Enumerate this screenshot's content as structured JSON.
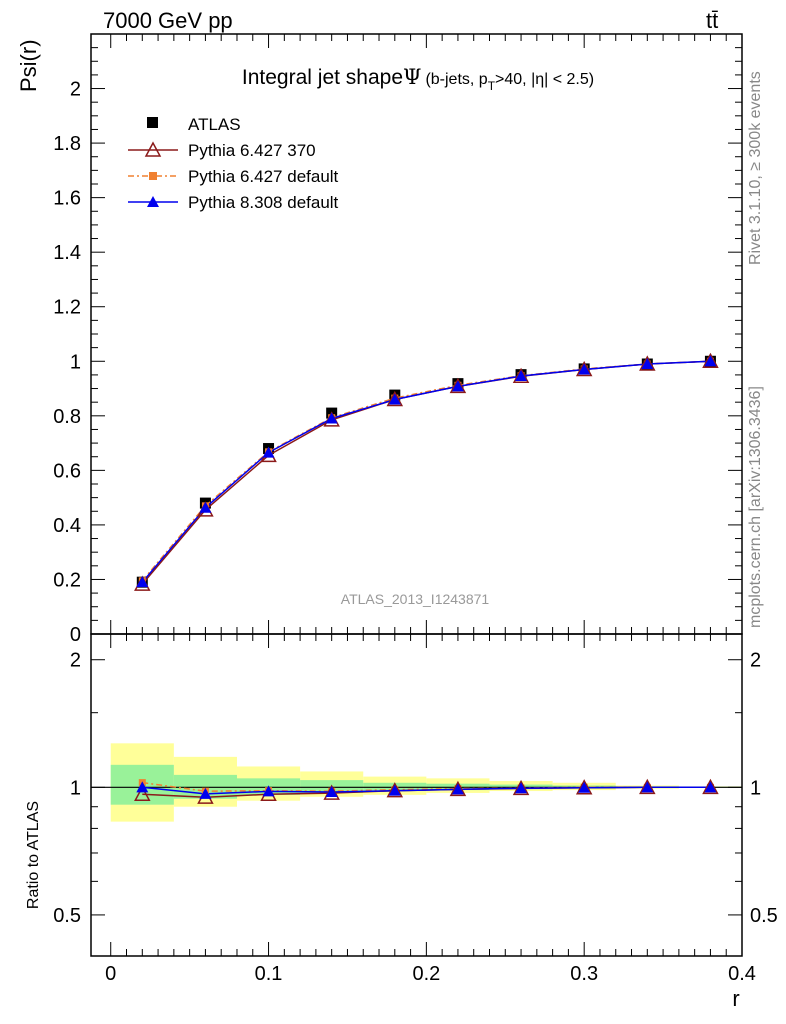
{
  "header": {
    "left": "7000 GeV pp",
    "right": "tt̄"
  },
  "side_labels": {
    "top": "Rivet 3.1.10, ≥ 300k events",
    "bottom": "mcplots.cern.ch [arXiv:1306.3436]"
  },
  "colors": {
    "atlas": "#000000",
    "py6_370": "#8b1a1a",
    "py6_default": "#f08030",
    "py8_default": "#0000ee",
    "band_inner": "#99f299",
    "band_outer": "#ffff99",
    "watermark": "#999999"
  },
  "chart_data": [
    {
      "type": "line",
      "title": "Integral jet shape",
      "title_symbol": "Ψ",
      "title_cut_prefix": "(b-jets, p",
      "title_cut_sub": "T",
      "title_cut_suffix": ">40, |η| < 2.5)",
      "watermark": "ATLAS_2013_I1243871",
      "ylabel": "Psi(r)",
      "xlim": [
        -0.0125,
        0.4
      ],
      "ylim": [
        0,
        2.2
      ],
      "y_ticks": [
        "0",
        "0.2",
        "0.4",
        "0.6",
        "0.8",
        "1",
        "1.2",
        "1.4",
        "1.6",
        "1.8",
        "2"
      ],
      "legend_position": "top-left",
      "legend": [
        "ATLAS",
        "Pythia 6.427 370",
        "Pythia 6.427 default",
        "Pythia 8.308 default"
      ],
      "x": [
        0.02,
        0.06,
        0.1,
        0.14,
        0.18,
        0.22,
        0.26,
        0.3,
        0.34,
        0.38
      ],
      "series": [
        {
          "name": "ATLAS",
          "values": [
            0.19,
            0.48,
            0.68,
            0.81,
            0.876,
            0.918,
            0.951,
            0.972,
            0.99,
            1.0
          ]
        },
        {
          "name": "Pythia 6.427 370",
          "values": [
            0.183,
            0.455,
            0.655,
            0.785,
            0.86,
            0.908,
            0.945,
            0.97,
            0.99,
            1.0
          ]
        },
        {
          "name": "Pythia 6.427 default",
          "values": [
            0.195,
            0.47,
            0.668,
            0.793,
            0.865,
            0.912,
            0.947,
            0.972,
            0.99,
            1.0
          ]
        },
        {
          "name": "Pythia 8.308 default",
          "values": [
            0.19,
            0.463,
            0.665,
            0.79,
            0.86,
            0.908,
            0.946,
            0.97,
            0.99,
            1.0
          ]
        }
      ]
    },
    {
      "type": "line",
      "ylabel": "Ratio to ATLAS",
      "xlabel": "r",
      "scale": "log",
      "xlim": [
        -0.0125,
        0.4
      ],
      "ylim": [
        0.4,
        2.3
      ],
      "x_ticks": [
        "0",
        "0.1",
        "0.2",
        "0.3",
        "0.4"
      ],
      "y_ticks": [
        "0.5",
        "1",
        "2"
      ],
      "bins": [
        [
          0.0,
          0.04
        ],
        [
          0.04,
          0.08
        ],
        [
          0.08,
          0.12
        ],
        [
          0.12,
          0.16
        ],
        [
          0.16,
          0.2
        ],
        [
          0.2,
          0.24
        ],
        [
          0.24,
          0.28
        ],
        [
          0.28,
          0.32
        ],
        [
          0.32,
          0.36
        ],
        [
          0.36,
          0.4
        ]
      ],
      "band_inner": [
        [
          0.91,
          1.13
        ],
        [
          0.94,
          1.07
        ],
        [
          0.96,
          1.05
        ],
        [
          0.97,
          1.04
        ],
        [
          0.98,
          1.025
        ],
        [
          0.985,
          1.02
        ],
        [
          0.99,
          1.015
        ],
        [
          0.993,
          1.01
        ],
        [
          0.996,
          1.005
        ],
        [
          0.998,
          1.003
        ]
      ],
      "band_outer": [
        [
          0.83,
          1.27
        ],
        [
          0.9,
          1.18
        ],
        [
          0.93,
          1.12
        ],
        [
          0.95,
          1.09
        ],
        [
          0.96,
          1.06
        ],
        [
          0.97,
          1.05
        ],
        [
          0.98,
          1.035
        ],
        [
          0.985,
          1.025
        ],
        [
          0.993,
          1.01
        ],
        [
          0.997,
          1.005
        ]
      ],
      "x": [
        0.02,
        0.06,
        0.1,
        0.14,
        0.18,
        0.22,
        0.26,
        0.3,
        0.34,
        0.38
      ],
      "series": [
        {
          "name": "Pythia 6.427 370",
          "values": [
            0.963,
            0.948,
            0.963,
            0.969,
            0.982,
            0.989,
            0.994,
            0.998,
            1.0,
            1.0
          ]
        },
        {
          "name": "Pythia 6.427 default",
          "values": [
            1.026,
            0.979,
            0.982,
            0.979,
            0.987,
            0.993,
            0.996,
            1.0,
            1.0,
            1.0
          ]
        },
        {
          "name": "Pythia 8.308 default",
          "values": [
            1.0,
            0.965,
            0.978,
            0.975,
            0.982,
            0.989,
            0.995,
            0.998,
            1.0,
            1.0
          ]
        }
      ]
    }
  ]
}
